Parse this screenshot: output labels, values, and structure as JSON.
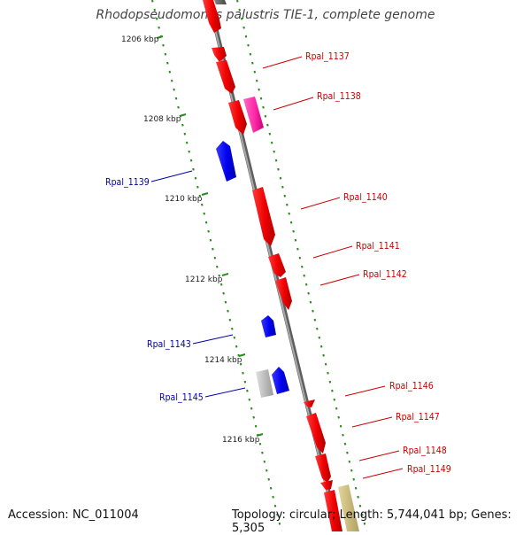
{
  "title": "Rhodopseudomonas palustris TIE-1, complete genome",
  "footer": {
    "accession": "Accession: NC_011004",
    "summary": "Topology: circular; Length: 5,744,041 bp; Genes: 5,305"
  },
  "colors": {
    "backbone": "#8a8a8a",
    "scale_tick": "#2a8a1e",
    "label_forward": "#cc0000",
    "label_reverse": "#0000aa"
  },
  "scale_labels": [
    "1206 kbp",
    "1208 kbp",
    "1210 kbp",
    "1212 kbp",
    "1214 kbp",
    "1216 kbp"
  ],
  "genes": [
    {
      "name": "Rpal_1137",
      "color": "red"
    },
    {
      "name": "Rpal_1138",
      "color": "magenta"
    },
    {
      "name": "Rpal_1139",
      "color": "blue"
    },
    {
      "name": "Rpal_1140",
      "color": "red"
    },
    {
      "name": "Rpal_1141",
      "color": "red"
    },
    {
      "name": "Rpal_1142",
      "color": "red"
    },
    {
      "name": "Rpal_1143",
      "color": "blue"
    },
    {
      "name": "Rpal_1145",
      "color": "blue"
    },
    {
      "name": "Rpal_1146",
      "color": "red"
    },
    {
      "name": "Rpal_1147",
      "color": "red"
    },
    {
      "name": "Rpal_1148",
      "color": "red"
    },
    {
      "name": "Rpal_1149",
      "color": "red"
    }
  ]
}
